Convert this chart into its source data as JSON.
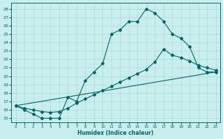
{
  "xlabel": "Humidex (Indice chaleur)",
  "bg_color": "#c8eeee",
  "line_color": "#006666",
  "grid_color": "#b0d8d8",
  "xlim": [
    -0.5,
    23.5
  ],
  "ylim": [
    14.5,
    28.7
  ],
  "yticks": [
    15,
    16,
    17,
    18,
    19,
    20,
    21,
    22,
    23,
    24,
    25,
    26,
    27,
    28
  ],
  "xticks": [
    0,
    1,
    2,
    3,
    4,
    5,
    6,
    7,
    8,
    9,
    10,
    11,
    12,
    13,
    14,
    15,
    16,
    17,
    18,
    19,
    20,
    21,
    22,
    23
  ],
  "line1_x": [
    0,
    1,
    2,
    3,
    4,
    5,
    6,
    7,
    8,
    9,
    10,
    11,
    12,
    13,
    14,
    15,
    16,
    17,
    18,
    19,
    20,
    21,
    22,
    23
  ],
  "line1_y": [
    16.5,
    16.0,
    15.5,
    15.0,
    15.0,
    15.0,
    17.5,
    17.0,
    19.5,
    20.5,
    21.5,
    25.0,
    25.5,
    26.5,
    26.5,
    28.0,
    27.5,
    26.5,
    25.0,
    24.5,
    23.5,
    21.0,
    20.5,
    20.5
  ],
  "line2_x": [
    0,
    1,
    2,
    3,
    4,
    5,
    6,
    7,
    8,
    9,
    10,
    11,
    12,
    13,
    14,
    15,
    16,
    17,
    18,
    19,
    20,
    21,
    22,
    23
  ],
  "line2_y": [
    16.5,
    16.2,
    16.0,
    15.8,
    15.7,
    15.8,
    16.2,
    16.8,
    17.3,
    17.8,
    18.3,
    18.8,
    19.3,
    19.8,
    20.3,
    20.8,
    21.7,
    23.2,
    22.5,
    22.2,
    21.8,
    21.3,
    21.0,
    20.7
  ],
  "line3_x": [
    0,
    23
  ],
  "line3_y": [
    16.5,
    20.5
  ]
}
